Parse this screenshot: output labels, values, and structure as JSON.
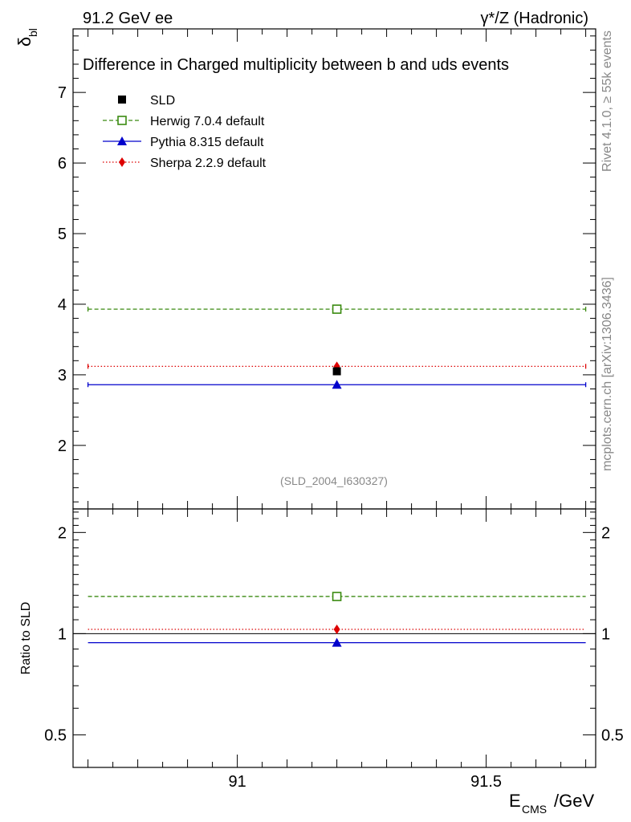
{
  "header": {
    "left": "91.2 GeV ee",
    "right_prefix": "γ*/Z (Hadronic)"
  },
  "side_labels": {
    "rivet": "Rivet 4.1.0, ≥ 55k events",
    "mcplots": "mcplots.cern.ch [arXiv:1306.3436]"
  },
  "chart_data": {
    "type": "scatter",
    "title": "Difference in Charged multiplicity between b and uds events",
    "watermark": "(SLD_2004_I630327)",
    "xlabel": "E",
    "xlabel_sub": "CMS",
    "xlabel_suffix": "/GeV",
    "ylabel": "δ",
    "ylabel_sub": "bl",
    "ratio_ylabel": "Ratio to SLD",
    "xlim": [
      90.67,
      91.72
    ],
    "ylim": [
      1.1,
      7.9
    ],
    "ratio_ylim": [
      0.4,
      2.35
    ],
    "xticks": [
      91,
      91.5
    ],
    "xtick_labels": [
      "91",
      "91.5"
    ],
    "yticks": [
      2,
      3,
      4,
      5,
      6,
      7
    ],
    "ytick_labels": [
      "2",
      "3",
      "4",
      "5",
      "6",
      "7"
    ],
    "ratio_yticks": [
      0.5,
      1,
      2
    ],
    "ratio_ytick_labels": [
      "0.5",
      "1",
      "2"
    ],
    "bin": [
      90.7,
      91.7
    ],
    "x_center": 91.2,
    "legend_position": "top-left",
    "series": [
      {
        "name": "SLD",
        "marker": "filled-square",
        "color": "#000000",
        "line": "none",
        "y": 3.05,
        "ratio": 1.0
      },
      {
        "name": "Herwig 7.0.4 default",
        "marker": "open-square",
        "color": "#3a8a10",
        "line": "dashed",
        "y": 3.93,
        "ratio": 1.29
      },
      {
        "name": "Pythia 8.315 default",
        "marker": "triangle",
        "color": "#0000cc",
        "line": "solid",
        "y": 2.86,
        "ratio": 0.94
      },
      {
        "name": "Sherpa 2.2.9 default",
        "marker": "diamond",
        "color": "#dd0000",
        "line": "dotted",
        "y": 3.12,
        "ratio": 1.03
      }
    ]
  }
}
